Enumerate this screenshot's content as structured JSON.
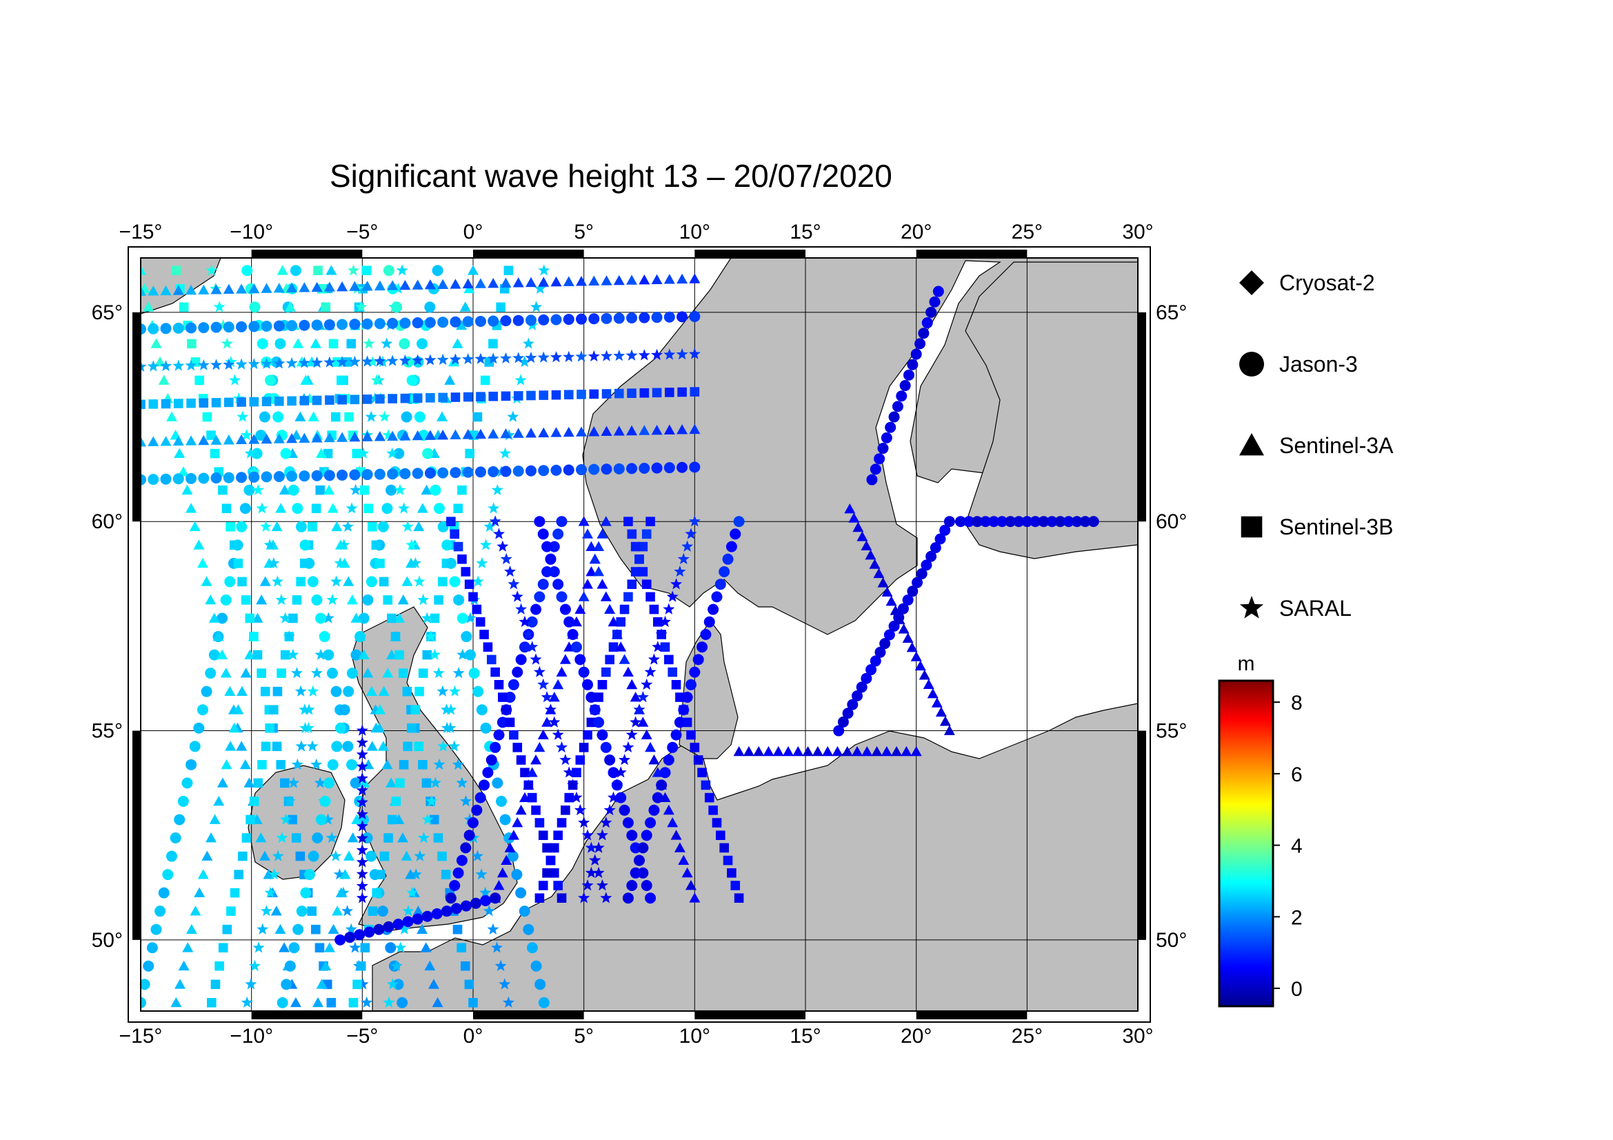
{
  "title": "Significant wave height 13 – 20/07/2020",
  "map": {
    "lon_range": [
      -15,
      30
    ],
    "lat_range": [
      48.3,
      66.3
    ],
    "lon_ticks": [
      -15,
      -10,
      -5,
      0,
      5,
      10,
      15,
      20,
      25,
      30
    ],
    "lat_ticks": [
      50,
      55,
      60,
      65
    ],
    "land_color": "#bebebe",
    "sea_color": "#ffffff",
    "gridlines": true
  },
  "legend": {
    "items": [
      {
        "label": "Cryosat-2",
        "symbol": "diamond"
      },
      {
        "label": "Jason-3",
        "symbol": "circle"
      },
      {
        "label": "Sentinel-3A",
        "symbol": "triangle"
      },
      {
        "label": "Sentinel-3B",
        "symbol": "square"
      },
      {
        "label": "SARAL",
        "symbol": "star"
      }
    ]
  },
  "colorbar": {
    "unit": "m",
    "min": -0.5,
    "max": 8.6,
    "ticks": [
      0,
      2,
      4,
      6,
      8
    ],
    "colors": [
      "#00008f",
      "#0000ff",
      "#0080ff",
      "#00ffff",
      "#80ff80",
      "#ffff00",
      "#ff8000",
      "#ff0000",
      "#800000"
    ]
  }
}
